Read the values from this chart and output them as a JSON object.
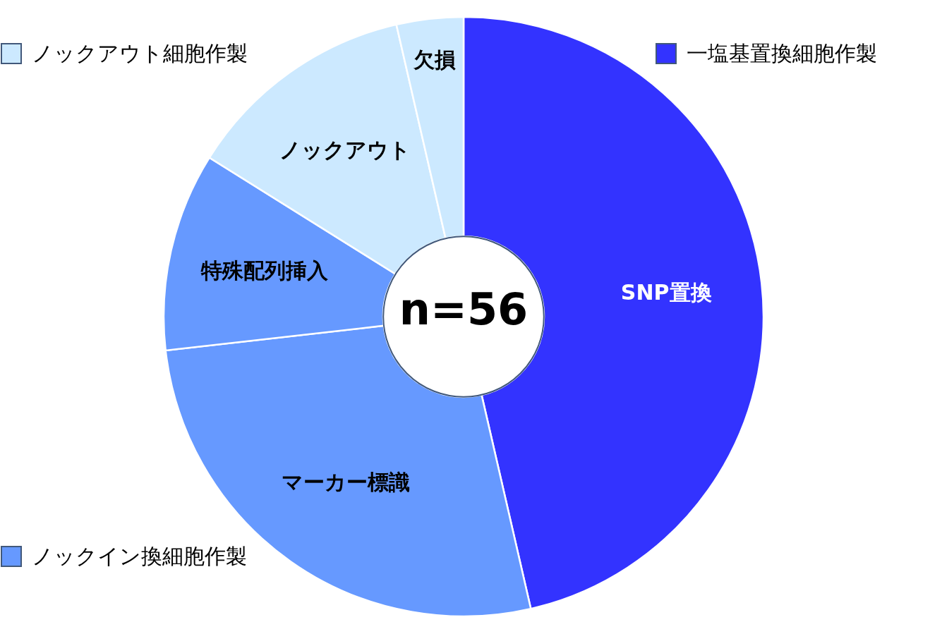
{
  "chart_data": {
    "type": "donut",
    "categories": [
      "SNP置換",
      "マーカー標識",
      "特殊配列挿入",
      "ノックアウト",
      "欠損"
    ],
    "values": [
      46.4,
      26.8,
      10.7,
      12.5,
      3.6
    ],
    "colors": [
      "#3333ff",
      "#6699ff",
      "#6699ff",
      "#cce9ff",
      "#cce9ff"
    ],
    "annotations": [
      "n=56",
      {
        "text": "一塩基置換細胞作製",
        "x": "SNP置換"
      },
      {
        "text": "ノックイン換細胞作製",
        "x": "マーカー標識"
      },
      {
        "text": "ノックアウト細胞作製",
        "x": "ノックアウト"
      }
    ]
  }
}
